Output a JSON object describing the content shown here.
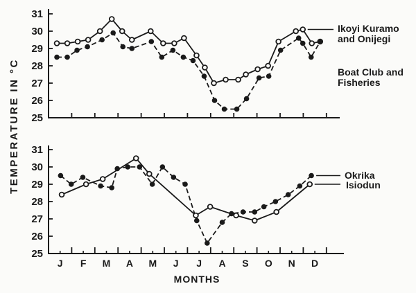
{
  "figure": {
    "background": "#fbfbf9",
    "ink_color": "#1a1a1a",
    "y_axis_label": "TEMPERATURE IN °C",
    "x_axis_label": "MONTHS",
    "month_labels": [
      "J",
      "F",
      "M",
      "A",
      "M",
      "J",
      "J",
      "A",
      "S",
      "O",
      "N",
      "D"
    ],
    "y_ticks": [
      25,
      26,
      27,
      28,
      29,
      30,
      31
    ]
  },
  "chart_data": [
    {
      "type": "line",
      "title": "",
      "xlabel": "MONTHS",
      "ylabel": "TEMPERATURE IN °C",
      "ylim": [
        25,
        31
      ],
      "x_unit": "month index, 0 = start of January; fractional values = semi-monthly readings",
      "grid": false,
      "legend_position": "right",
      "series": [
        {
          "name": "Ikoyi Kuramo and Onijegi",
          "legend_lines": [
            "Ikoyi Kuramo",
            "and Onijegi"
          ],
          "marker": "open-circle",
          "line_style": "solid",
          "points": [
            [
              0.36,
              29.3
            ],
            [
              0.81,
              29.3
            ],
            [
              1.26,
              29.4
            ],
            [
              1.71,
              29.5
            ],
            [
              2.22,
              30.0
            ],
            [
              2.73,
              30.7
            ],
            [
              3.18,
              30.0
            ],
            [
              3.6,
              29.5
            ],
            [
              4.41,
              30.0
            ],
            [
              4.95,
              29.3
            ],
            [
              5.43,
              29.3
            ],
            [
              5.85,
              29.6
            ],
            [
              6.39,
              28.6
            ],
            [
              6.75,
              27.9
            ],
            [
              7.14,
              27.0
            ],
            [
              7.65,
              27.2
            ],
            [
              8.19,
              27.2
            ],
            [
              8.52,
              27.5
            ],
            [
              9.03,
              27.8
            ],
            [
              9.48,
              28.0
            ],
            [
              9.93,
              29.4
            ],
            [
              10.68,
              30.0
            ],
            [
              10.98,
              30.1
            ],
            [
              11.37,
              29.3
            ],
            [
              11.73,
              29.4
            ]
          ]
        },
        {
          "name": "Boat Club and Fisheries",
          "legend_lines": [
            "Boat Club and",
            "Fisheries"
          ],
          "marker": "filled-circle",
          "line_style": "dashed",
          "points": [
            [
              0.36,
              28.5
            ],
            [
              0.81,
              28.5
            ],
            [
              1.23,
              28.9
            ],
            [
              1.68,
              29.1
            ],
            [
              2.31,
              29.5
            ],
            [
              2.79,
              29.9
            ],
            [
              3.21,
              29.1
            ],
            [
              3.6,
              29.0
            ],
            [
              4.44,
              29.4
            ],
            [
              4.89,
              28.5
            ],
            [
              5.37,
              28.9
            ],
            [
              5.82,
              28.5
            ],
            [
              6.24,
              28.3
            ],
            [
              6.72,
              27.4
            ],
            [
              7.17,
              26.0
            ],
            [
              7.59,
              25.5
            ],
            [
              8.13,
              25.5
            ],
            [
              8.55,
              26.1
            ],
            [
              9.09,
              27.3
            ],
            [
              9.51,
              27.4
            ],
            [
              10.02,
              28.9
            ],
            [
              10.8,
              29.6
            ],
            [
              10.98,
              29.3
            ],
            [
              11.34,
              28.5
            ],
            [
              11.73,
              29.4
            ]
          ]
        }
      ]
    },
    {
      "type": "line",
      "title": "",
      "xlabel": "MONTHS",
      "ylabel": "TEMPERATURE IN °C",
      "ylim": [
        25,
        31
      ],
      "x_unit": "month index, 0 = start of January; fractional values = semi-monthly readings",
      "grid": false,
      "legend_position": "right",
      "series": [
        {
          "name": "Okrika",
          "legend_lines": [
            "Okrika"
          ],
          "marker": "filled-circle",
          "line_style": "dashed",
          "points": [
            [
              0.52,
              29.5
            ],
            [
              0.98,
              29.0
            ],
            [
              1.48,
              29.4
            ],
            [
              2.25,
              28.9
            ],
            [
              2.73,
              28.8
            ],
            [
              2.97,
              29.9
            ],
            [
              3.42,
              30.0
            ],
            [
              3.93,
              30.0
            ],
            [
              4.48,
              29.0
            ],
            [
              4.92,
              30.0
            ],
            [
              5.4,
              29.4
            ],
            [
              5.9,
              29.0
            ],
            [
              6.4,
              26.9
            ],
            [
              6.85,
              25.6
            ],
            [
              7.5,
              26.8
            ],
            [
              7.9,
              27.3
            ],
            [
              8.4,
              27.4
            ],
            [
              8.9,
              27.4
            ],
            [
              9.3,
              27.7
            ],
            [
              9.8,
              28.0
            ],
            [
              10.35,
              28.4
            ],
            [
              10.85,
              28.9
            ],
            [
              11.35,
              29.5
            ]
          ]
        },
        {
          "name": "Isiodun",
          "legend_lines": [
            "Isiodun"
          ],
          "marker": "open-circle",
          "line_style": "solid",
          "points": [
            [
              0.57,
              28.4
            ],
            [
              1.62,
              29.0
            ],
            [
              2.34,
              29.3
            ],
            [
              3.78,
              30.5
            ],
            [
              4.35,
              29.6
            ],
            [
              6.36,
              27.2
            ],
            [
              6.98,
              27.7
            ],
            [
              8.1,
              27.2
            ],
            [
              8.9,
              26.9
            ],
            [
              9.84,
              27.4
            ],
            [
              11.28,
              29.0
            ]
          ]
        }
      ]
    }
  ]
}
